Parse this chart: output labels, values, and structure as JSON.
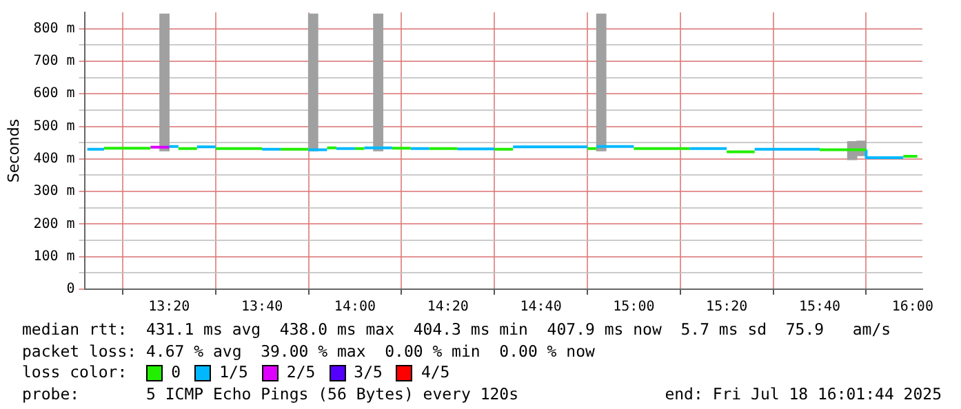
{
  "chart_data": {
    "type": "step",
    "ylabel": "Seconds",
    "legend_title": "loss color:",
    "legend": "bottom",
    "grid": true,
    "xlim": [
      13.03,
      16.035
    ],
    "ylim": [
      0,
      850
    ],
    "xticks": [
      {
        "value": 13.3333,
        "label": "13:20"
      },
      {
        "value": 13.6667,
        "label": "13:40"
      },
      {
        "value": 14,
        "label": "14:00"
      },
      {
        "value": 14.3333,
        "label": "14:20"
      },
      {
        "value": 14.6667,
        "label": "14:40"
      },
      {
        "value": 15,
        "label": "15:00"
      },
      {
        "value": 15.3333,
        "label": "15:20"
      },
      {
        "value": 15.6667,
        "label": "15:40"
      },
      {
        "value": 16,
        "label": "16:00"
      }
    ],
    "yticks": [
      0,
      {
        "value": 50,
        "label": null
      },
      {
        "value": 100,
        "label": "100 m"
      },
      {
        "value": 150,
        "label": null
      },
      {
        "value": 200,
        "label": "200 m"
      },
      {
        "value": 250,
        "label": null
      },
      {
        "value": 300,
        "label": "300 m"
      },
      {
        "value": 350,
        "label": null
      },
      {
        "value": 400,
        "label": "400 m"
      },
      {
        "value": 450,
        "label": null
      },
      {
        "value": 500,
        "label": "500 m"
      },
      {
        "value": 550,
        "label": null
      },
      {
        "value": 600,
        "label": "600 m"
      },
      {
        "value": 650,
        "label": null
      },
      {
        "value": 700,
        "label": "700 m"
      },
      {
        "value": 750,
        "label": null
      },
      {
        "value": 800,
        "label": "800 m"
      }
    ],
    "series": [
      {
        "type": "bar",
        "color": "#a0a0a0",
        "x": [
          13.3167,
          13.85,
          14.0833,
          14.8833,
          15.7833,
          15.8167
        ],
        "base": [
          425,
          425,
          425,
          425,
          398,
          410
        ],
        "values": [
          420,
          420,
          420,
          420,
          55,
          45
        ]
      },
      {
        "color": "#00b8ff",
        "x": [
          13.04,
          13.1
        ],
        "values": [
          430,
          430
        ]
      },
      {
        "color": "#22ee00",
        "x": [
          13.1,
          13.2667
        ],
        "values": [
          433,
          433
        ]
      },
      {
        "color": "#dd00ff",
        "x": [
          13.2667,
          13.3333
        ],
        "values": [
          436,
          436
        ]
      },
      {
        "color": "#00b8ff",
        "x": [
          13.3333,
          13.3667
        ],
        "values": [
          438,
          438
        ]
      },
      {
        "color": "#22ee00",
        "x": [
          13.3667,
          13.4333
        ],
        "values": [
          432,
          432
        ]
      },
      {
        "color": "#00b8ff",
        "x": [
          13.4333,
          13.5
        ],
        "values": [
          437,
          437
        ]
      },
      {
        "color": "#22ee00",
        "x": [
          13.5,
          13.6667
        ],
        "values": [
          432,
          432
        ]
      },
      {
        "color": "#00b8ff",
        "x": [
          13.6667,
          13.7333
        ],
        "values": [
          430,
          430
        ]
      },
      {
        "color": "#22ee00",
        "x": [
          13.7333,
          13.8333
        ],
        "values": [
          430,
          430
        ]
      },
      {
        "color": "#00b8ff",
        "x": [
          13.8333,
          13.9
        ],
        "values": [
          428,
          428
        ]
      },
      {
        "color": "#22ee00",
        "x": [
          13.9,
          13.9333
        ],
        "values": [
          434,
          434
        ]
      },
      {
        "color": "#00b8ff",
        "x": [
          13.9333,
          14
        ],
        "values": [
          432,
          432
        ]
      },
      {
        "color": "#22ee00",
        "x": [
          14,
          14.0333
        ],
        "values": [
          432,
          432
        ]
      },
      {
        "color": "#00b8ff",
        "x": [
          14.0333,
          14.1333
        ],
        "values": [
          434,
          434
        ]
      },
      {
        "color": "#22ee00",
        "x": [
          14.1333,
          14.2
        ],
        "values": [
          433,
          433
        ]
      },
      {
        "color": "#00b8ff",
        "x": [
          14.2,
          14.2667
        ],
        "values": [
          432,
          432
        ]
      },
      {
        "color": "#22ee00",
        "x": [
          14.2667,
          14.3667
        ],
        "values": [
          432,
          432
        ]
      },
      {
        "color": "#00b8ff",
        "x": [
          14.3667,
          14.5
        ],
        "values": [
          431,
          431
        ]
      },
      {
        "color": "#22ee00",
        "x": [
          14.5,
          14.5667
        ],
        "values": [
          430,
          430
        ]
      },
      {
        "color": "#00b8ff",
        "x": [
          14.5667,
          14.8333
        ],
        "values": [
          437,
          437
        ]
      },
      {
        "color": "#22ee00",
        "x": [
          14.8333,
          14.8667
        ],
        "values": [
          432,
          432
        ]
      },
      {
        "color": "#00b8ff",
        "x": [
          14.8667,
          15
        ],
        "values": [
          438,
          438
        ]
      },
      {
        "color": "#22ee00",
        "x": [
          15,
          15.2
        ],
        "values": [
          432,
          432
        ]
      },
      {
        "color": "#00b8ff",
        "x": [
          15.2,
          15.3333
        ],
        "values": [
          432,
          432
        ]
      },
      {
        "color": "#22ee00",
        "x": [
          15.3333,
          15.4333
        ],
        "values": [
          422,
          422
        ]
      },
      {
        "color": "#00b8ff",
        "x": [
          15.4333,
          15.6667
        ],
        "values": [
          430,
          430
        ]
      },
      {
        "color": "#22ee00",
        "x": [
          15.6667,
          15.8333
        ],
        "values": [
          428,
          428
        ]
      },
      {
        "color": "#00b8ff",
        "x": [
          15.8333,
          15.9333,
          15.9667
        ],
        "values": [
          428,
          404,
          404
        ]
      },
      {
        "color": "#22ee00",
        "x": [
          15.9667,
          16.0167
        ],
        "values": [
          408,
          408
        ]
      },
      {
        "name": "0",
        "color": "#22ee00"
      },
      {
        "name": "1/5",
        "color": "#00b8ff"
      },
      {
        "name": "2/5",
        "color": "#dd00ff"
      },
      {
        "name": "3/5",
        "color": "#5500ff"
      },
      {
        "name": "4/5",
        "color": "#ff0000"
      }
    ],
    "annotations": [
      "median rtt:  431.1 ms avg  438.0 ms max  404.3 ms min  407.9 ms now  5.7 ms sd  75.9   am/s",
      "packet loss: 4.67 % avg  39.00 % max  0.00 % min  0.00 % now",
      "probe:       5 ICMP Echo Pings (56 Bytes) every 120s",
      "end: Fri Jul 18 16:01:44 2025"
    ]
  }
}
